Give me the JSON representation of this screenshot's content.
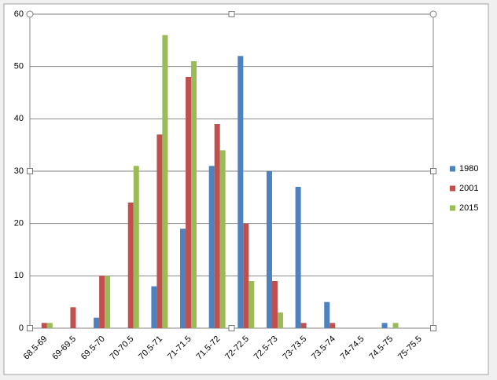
{
  "chart_data": {
    "type": "bar",
    "legend": "right",
    "grid": true,
    "categories": [
      "68.5-69",
      "69-69.5",
      "69.5-70",
      "70-70.5",
      "70.5-71",
      "71-71.5",
      "71.5-72",
      "72-72.5",
      "72.5-73",
      "73-73.5",
      "73.5-74",
      "74-74.5",
      "74.5-75",
      "75-75.5"
    ],
    "series": [
      {
        "name": "1980",
        "color": "#4f81bd",
        "values": [
          0,
          0,
          2,
          0,
          8,
          19,
          31,
          52,
          30,
          27,
          5,
          0,
          1,
          0
        ]
      },
      {
        "name": "2001",
        "color": "#c0504d",
        "values": [
          1,
          4,
          10,
          24,
          37,
          48,
          39,
          20,
          9,
          1,
          1,
          0,
          0,
          0
        ]
      },
      {
        "name": "2015",
        "color": "#9bbb59",
        "values": [
          1,
          0,
          10,
          31,
          56,
          51,
          34,
          9,
          3,
          0,
          0,
          0,
          1,
          0
        ]
      }
    ],
    "ylim": [
      0,
      60
    ],
    "yticks": [
      0,
      10,
      20,
      30,
      40,
      50,
      60
    ]
  }
}
